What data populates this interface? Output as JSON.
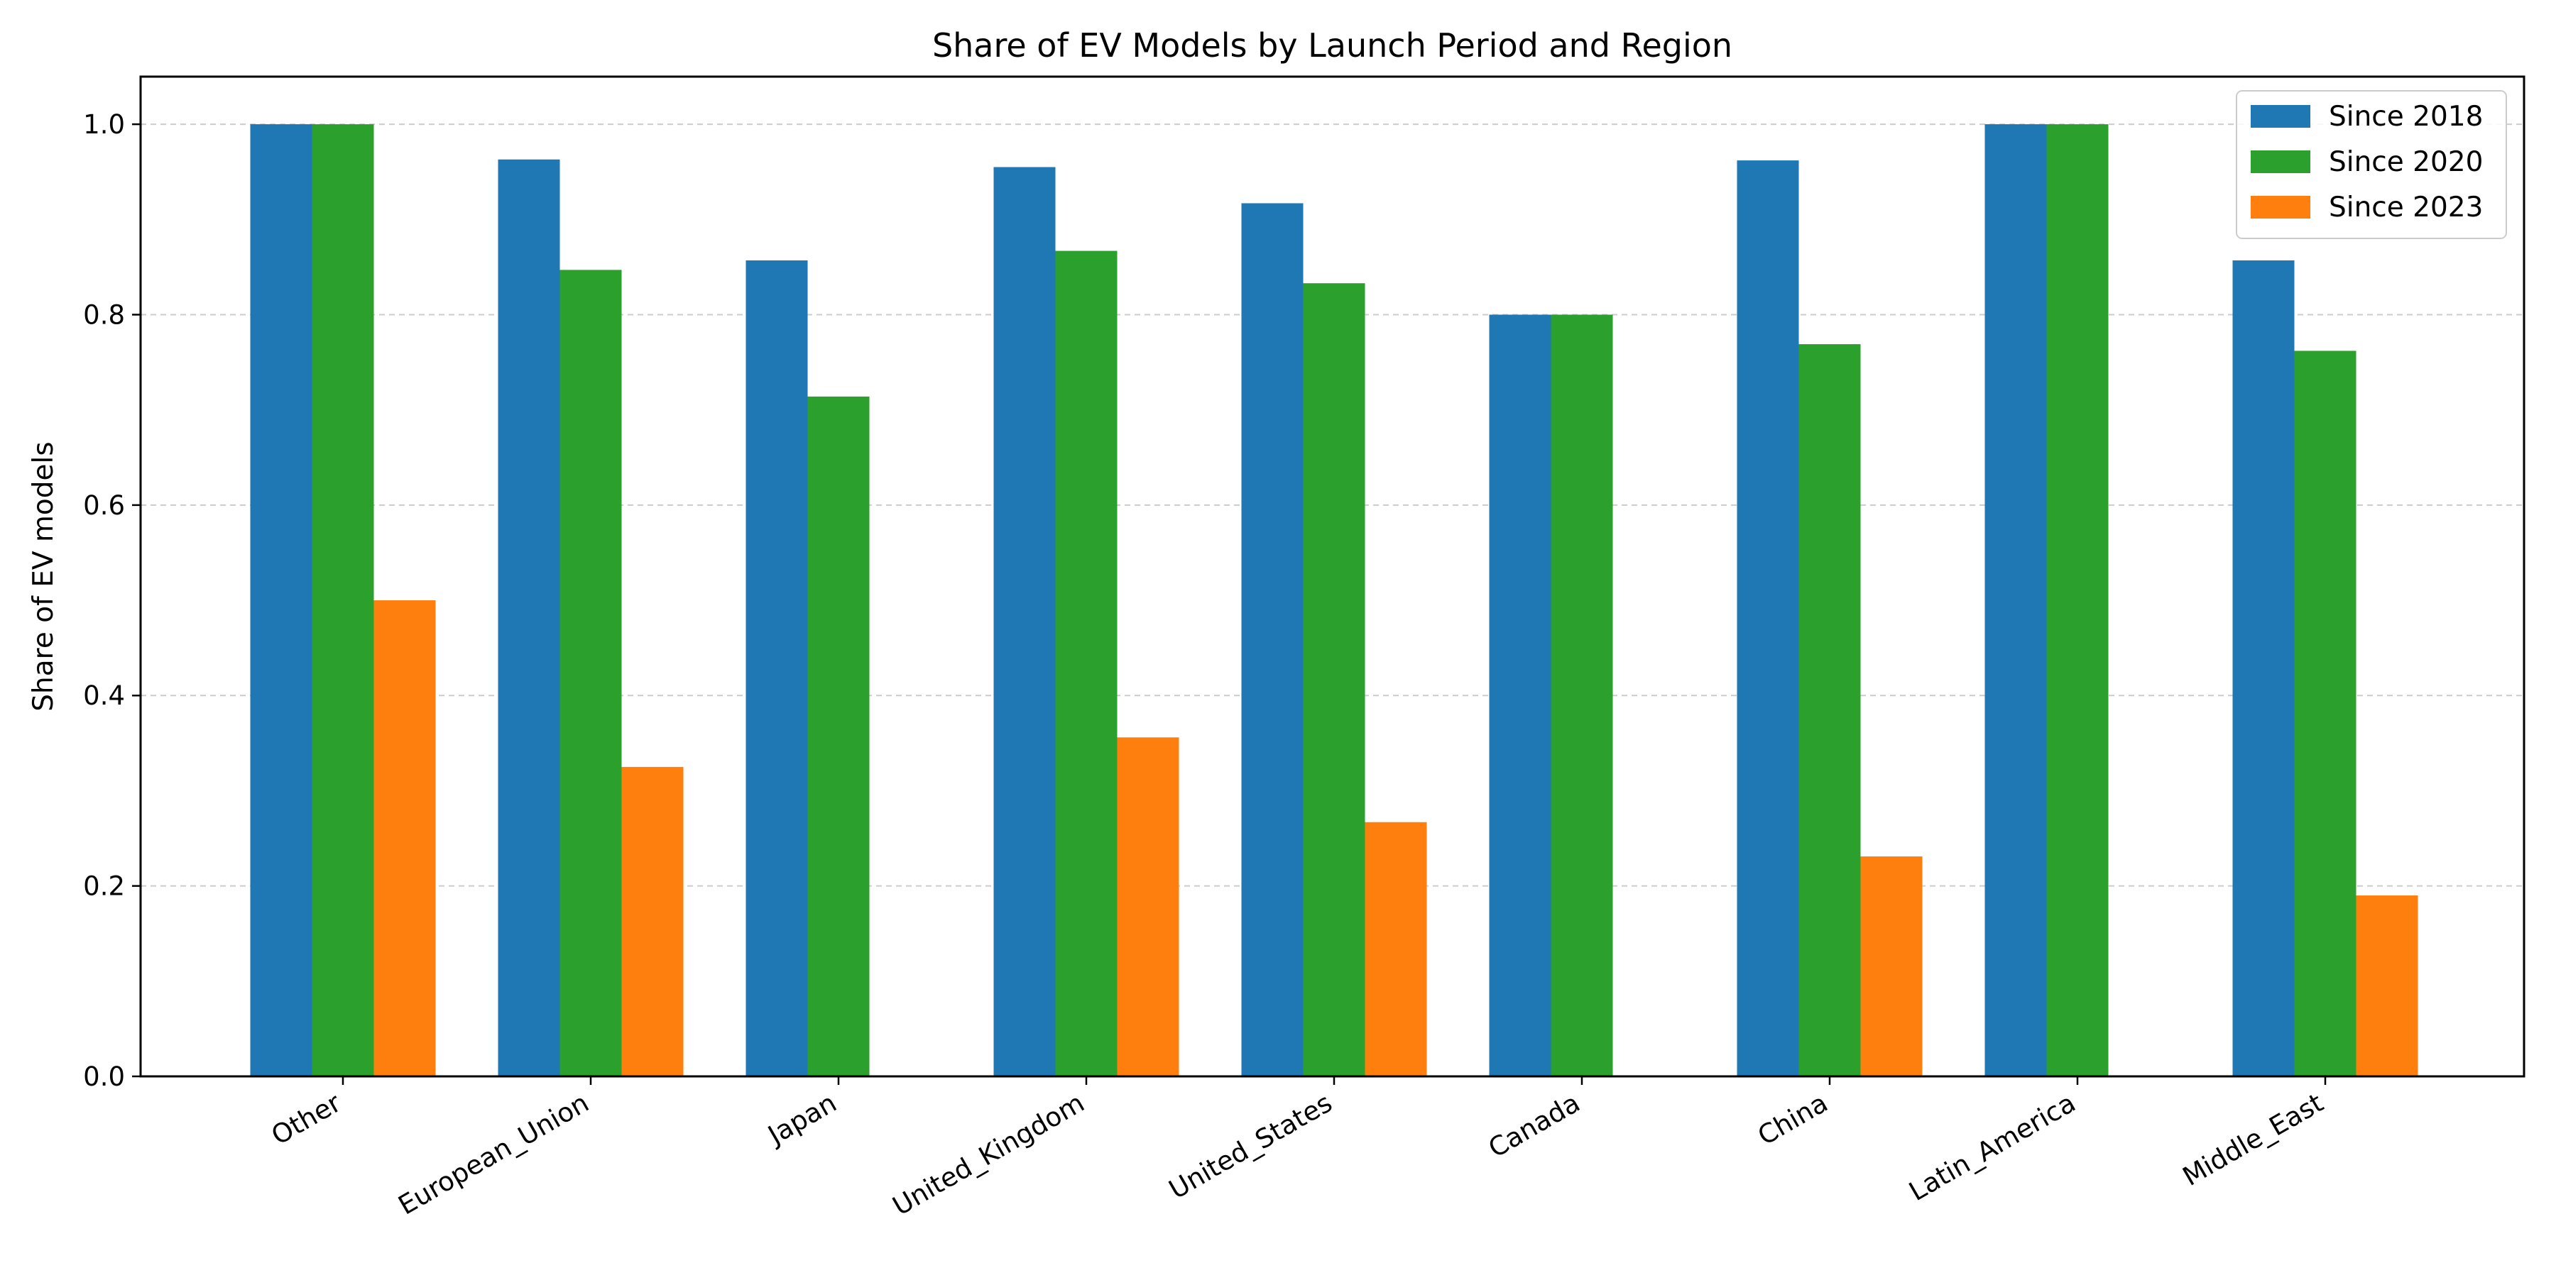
{
  "chart_data": {
    "type": "bar",
    "title": "Share of EV Models by Launch Period and Region",
    "xlabel": "",
    "ylabel": "Share of EV models",
    "ylim": [
      0,
      1.05
    ],
    "yticks": [
      "0.0",
      "0.2",
      "0.4",
      "0.6",
      "0.8",
      "1.0"
    ],
    "ytick_values": [
      0,
      0.2,
      0.4,
      0.6,
      0.8,
      1.0
    ],
    "grid": "horizontal dashed",
    "legend_position": "top-right",
    "categories": [
      "Other",
      "European_Union",
      "Japan",
      "United_Kingdom",
      "United_States",
      "Canada",
      "China",
      "Latin_America",
      "Middle_East"
    ],
    "series": [
      {
        "name": "Since 2018",
        "color": "#1f77b4",
        "values": [
          1.0,
          0.963,
          0.857,
          0.955,
          0.917,
          0.8,
          0.962,
          1.0,
          0.857
        ]
      },
      {
        "name": "Since 2020",
        "color": "#2ca02c",
        "values": [
          1.0,
          0.847,
          0.714,
          0.867,
          0.833,
          0.8,
          0.769,
          1.0,
          0.762
        ]
      },
      {
        "name": "Since 2023",
        "color": "#ff7f0e",
        "values": [
          0.5,
          0.325,
          0.0,
          0.356,
          0.267,
          0.0,
          0.231,
          0.0,
          0.19
        ]
      }
    ]
  }
}
